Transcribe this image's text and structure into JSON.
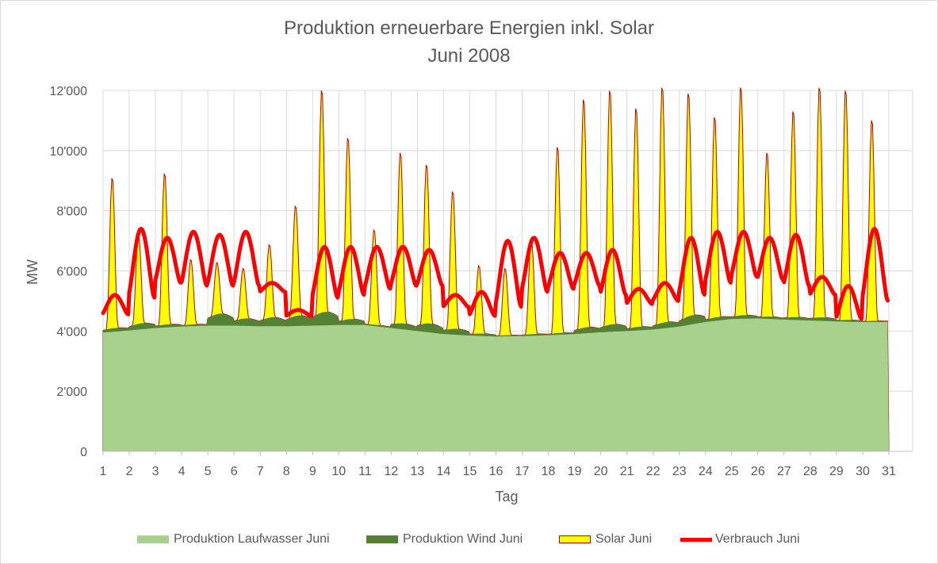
{
  "chart_data": {
    "type": "area",
    "title": "Produktion erneuerbare Energien inkl. Solar",
    "subtitle": "Juni 2008",
    "xlabel": "Tag",
    "ylabel": "MW",
    "ylim": [
      0,
      12000
    ],
    "yticks": [
      0,
      2000,
      4000,
      6000,
      8000,
      10000,
      12000
    ],
    "ytick_labels": [
      "0",
      "2'000",
      "4'000",
      "6'000",
      "8'000",
      "10'000",
      "12'000"
    ],
    "xticks": [
      1,
      2,
      3,
      4,
      5,
      6,
      7,
      8,
      9,
      10,
      11,
      12,
      13,
      14,
      15,
      16,
      17,
      18,
      19,
      20,
      21,
      22,
      23,
      24,
      25,
      26,
      27,
      28,
      29,
      30,
      31
    ],
    "xlim": [
      1,
      31
    ],
    "grid": "vertical and horizontal",
    "legend_position": "bottom",
    "colors": {
      "laufwasser": "#a9d18e",
      "wind": "#548235",
      "solar_fill": "#ffff00",
      "solar_edge": "#c00000",
      "verbrauch": "#ff0000",
      "grid": "#d9d9d9",
      "text": "#595959"
    },
    "series": [
      {
        "name": "Produktion Laufwasser Juni",
        "kind": "area",
        "daily_values": [
          3950,
          4020,
          4100,
          4150,
          4180,
          4180,
          4160,
          4160,
          4180,
          4200,
          4200,
          4100,
          4000,
          3900,
          3850,
          3820,
          3830,
          3860,
          3900,
          3960,
          4000,
          4050,
          4150,
          4300,
          4400,
          4420,
          4380,
          4350,
          4320,
          4300,
          4300
        ]
      },
      {
        "name": "Produktion Wind Juni",
        "kind": "area (stacked on Laufwasser)",
        "daily_extra": [
          120,
          200,
          100,
          60,
          400,
          250,
          300,
          350,
          450,
          200,
          50,
          200,
          300,
          200,
          80,
          40,
          60,
          60,
          200,
          250,
          120,
          200,
          300,
          120,
          120,
          80,
          100,
          120,
          60,
          40,
          40
        ]
      },
      {
        "name": "Solar Juni",
        "kind": "area (top of stack, daily peaks)",
        "daily_peak_total": [
          9150,
          7300,
          9300,
          6400,
          6300,
          6100,
          6900,
          8200,
          12100,
          10500,
          7400,
          10000,
          9600,
          8700,
          6200,
          6100,
          7100,
          10200,
          11800,
          12100,
          11500,
          12200,
          12000,
          11200,
          12200,
          10000,
          11400,
          12200,
          12100,
          11100,
          null
        ]
      },
      {
        "name": "Verbrauch Juni",
        "kind": "line",
        "daily_high": [
          5200,
          7400,
          7100,
          7300,
          7200,
          7300,
          5600,
          4700,
          6800,
          6800,
          6800,
          6800,
          6700,
          5200,
          5300,
          7000,
          7100,
          6600,
          6600,
          6700,
          5400,
          5600,
          7100,
          7300,
          7300,
          7100,
          7200,
          5800,
          5500,
          7400,
          null
        ],
        "daily_low": [
          4550,
          5100,
          5600,
          5500,
          5500,
          5500,
          5300,
          4500,
          5100,
          5200,
          5400,
          5500,
          5500,
          4800,
          4500,
          4800,
          5300,
          5400,
          5500,
          5200,
          4900,
          5000,
          5200,
          5600,
          5800,
          5700,
          5500,
          5200,
          4400,
          5000,
          null
        ]
      }
    ]
  },
  "legend": {
    "laufwasser": "Produktion Laufwasser Juni",
    "wind": "Produktion Wind Juni",
    "solar": "Solar Juni",
    "verbrauch": "Verbrauch Juni"
  }
}
